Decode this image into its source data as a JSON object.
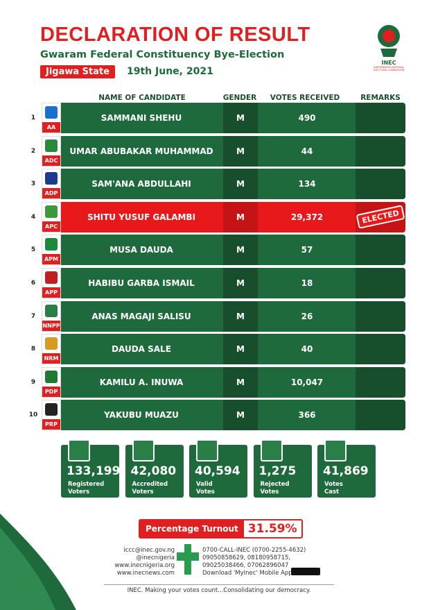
{
  "header": {
    "title": "DECLARATION OF RESULT",
    "subtitle": "Gwaram Federal Constituency Bye-Election",
    "state": "Jigawa State",
    "date": "19th June, 2021",
    "logo_text": "INEC",
    "logo_caption": "INDEPENDENT NATIONAL ELECTORAL COMMISSION"
  },
  "table": {
    "columns": [
      "NAME OF CANDIDATE",
      "GENDER",
      "VOTES RECEIVED",
      "REMARKS"
    ],
    "rows": [
      {
        "number": "1",
        "party": "AA",
        "name": "SAMMANI SHEHU",
        "gender": "M",
        "votes": "490"
      },
      {
        "number": "2",
        "party": "ADC",
        "name": "UMAR ABUBAKAR MUHAMMAD",
        "gender": "M",
        "votes": "44"
      },
      {
        "number": "3",
        "party": "ADP",
        "name": "SAM'ANA ABDULLAHI",
        "gender": "M",
        "votes": "134"
      },
      {
        "number": "4",
        "party": "APC",
        "name": "SHITU YUSUF GALAMBI",
        "gender": "M",
        "votes": "29,372",
        "remark": "ELECTED"
      },
      {
        "number": "5",
        "party": "APM",
        "name": "MUSA DAUDA",
        "gender": "M",
        "votes": "57"
      },
      {
        "number": "6",
        "party": "APP",
        "name": "HABIBU GARBA ISMAIL",
        "gender": "M",
        "votes": "18"
      },
      {
        "number": "7",
        "party": "NNPP",
        "name": "ANAS MAGAJI SALISU",
        "gender": "M",
        "votes": "26"
      },
      {
        "number": "8",
        "party": "NRM",
        "name": "DAUDA SALE",
        "gender": "M",
        "votes": "40"
      },
      {
        "number": "9",
        "party": "PDP",
        "name": "KAMILU A. INUWA",
        "gender": "M",
        "votes": "10,047"
      },
      {
        "number": "10",
        "party": "PRP",
        "name": "YAKUBU MUAZU",
        "gender": "M",
        "votes": "366"
      }
    ]
  },
  "stats": [
    {
      "value": "133,199",
      "label": [
        "Registered",
        "Voters"
      ]
    },
    {
      "value": "42,080",
      "label": [
        "Accredited",
        "Voters"
      ]
    },
    {
      "value": "40,594",
      "label": [
        "Valid",
        "Votes"
      ]
    },
    {
      "value": "1,275",
      "label": [
        "Rejected",
        "Votes"
      ]
    },
    {
      "value": "41,869",
      "label": [
        "Votes",
        "Cast"
      ]
    }
  ],
  "turnout": {
    "label": "Percentage Turnout",
    "value": "31.59%"
  },
  "footer": {
    "left": [
      "iccc@inec.gov.ng",
      "@inecnigeria",
      "www.inecnigeria.org",
      "www.inecnews.com"
    ],
    "right": [
      "0700-CALL-INEC (0700-2255-4632)",
      "09050858629, 08180958715,",
      "09025038466, 07062896047",
      "Download 'MyInec' Mobile App"
    ],
    "tagline": "INEC. Making your votes count...Consolidating our democracy."
  }
}
